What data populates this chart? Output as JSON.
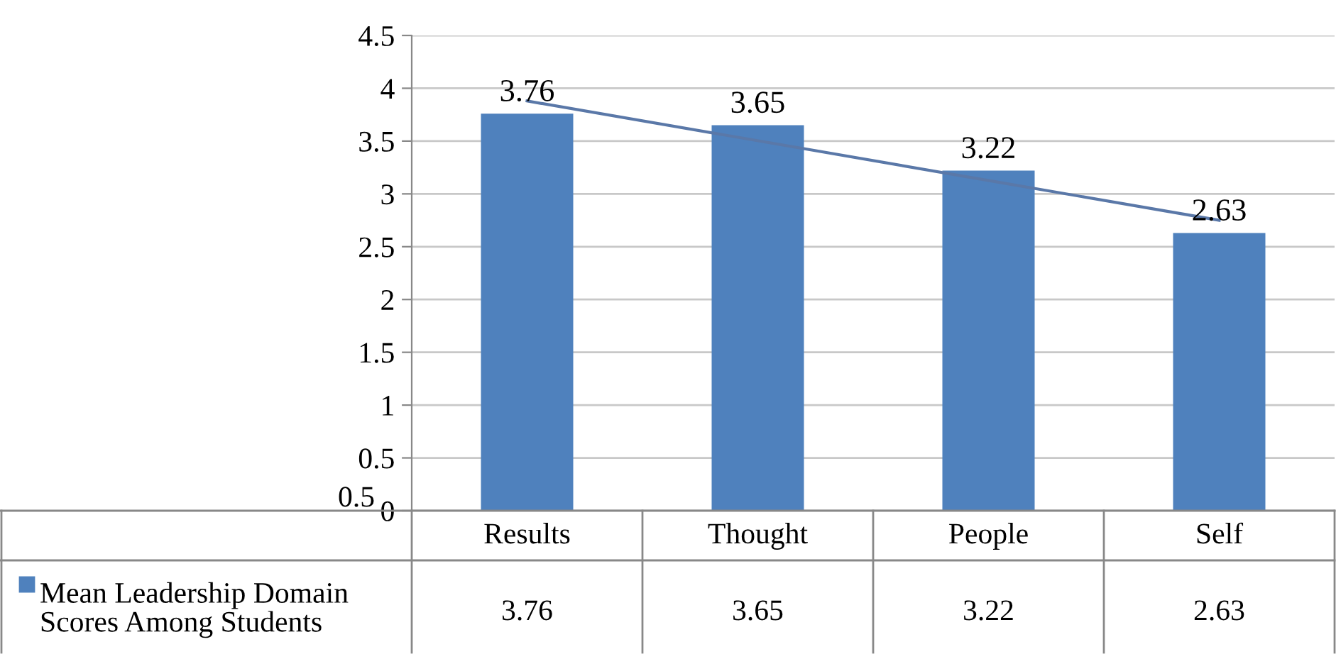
{
  "chart_data": {
    "type": "bar",
    "categories": [
      "Results",
      "Thought",
      "People",
      "Self"
    ],
    "series": [
      {
        "name": "Mean Leadership Domain Scores Among Students",
        "color": "#4f81bd",
        "values": [
          3.76,
          3.65,
          3.22,
          2.63
        ],
        "value_labels": [
          "3.76",
          "3.65",
          "3.22",
          "2.63"
        ]
      },
      {
        "type": "line",
        "color": "#5a78a8",
        "x": [
          "Results",
          "Self"
        ],
        "values": [
          3.88,
          2.75
        ]
      }
    ],
    "ylim": [
      0,
      4.5
    ],
    "yticks": [
      0,
      0.5,
      1,
      1.5,
      2,
      2.5,
      3,
      3.5,
      4,
      4.5
    ],
    "grid": "y",
    "legend": "bottom left",
    "annotations": [
      "0.5"
    ]
  }
}
